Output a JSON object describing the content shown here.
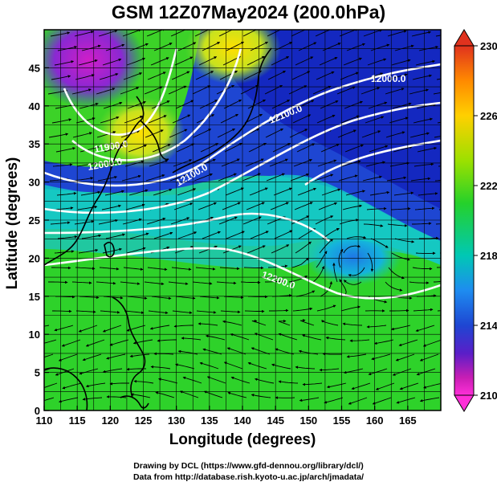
{
  "title": "GSM 12Z07May2024 (200.0hPa)",
  "xlabel": "Longitude (degrees)",
  "ylabel": "Latitude  (degrees)",
  "credits": [
    "Drawing by DCL (https://www.gfd-dennou.org/library/dcl/)",
    "Data from http://database.rish.kyoto-u.ac.jp/arch/jmadata/"
  ],
  "map": {
    "lon_range": [
      110,
      170
    ],
    "lat_range": [
      0,
      50
    ],
    "lon_ticks": [
      "110",
      "115",
      "120",
      "125",
      "130",
      "135",
      "140",
      "145",
      "150",
      "155",
      "160",
      "165"
    ],
    "lat_ticks": [
      "0",
      "5",
      "10",
      "15",
      "20",
      "25",
      "30",
      "35",
      "40",
      "45"
    ],
    "contour_labels": [
      "12000.0",
      "12100.0",
      "11900.0",
      "12000.0",
      "12100.0",
      "12200.0"
    ]
  },
  "colorbar": {
    "ticks": [
      "230",
      "226",
      "222",
      "218",
      "214",
      "210"
    ],
    "colors": [
      "#e0321e",
      "#ff8a00",
      "#ffd000",
      "#9be000",
      "#25d12a",
      "#00c8b4",
      "#1e8cf0",
      "#1e46d2",
      "#5a1ec8",
      "#c81eb4",
      "#ff2fd8"
    ]
  }
}
